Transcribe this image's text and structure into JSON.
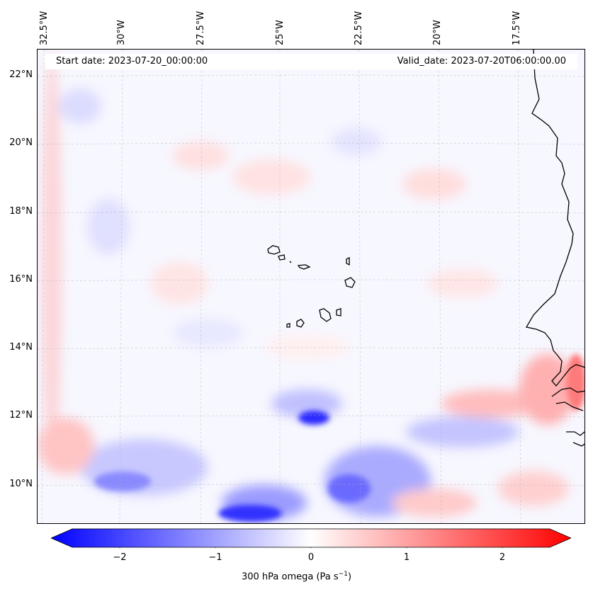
{
  "map": {
    "start_date": "Start date: 2023-07-20_00:00:00",
    "valid_date": "Valid_date: 2023-07-20T06:00:00.00",
    "lon_labels": [
      "32.5°W",
      "30°W",
      "27.5°W",
      "25°W",
      "22.5°W",
      "20°W",
      "17.5°W"
    ],
    "lat_labels": [
      "22°N",
      "20°N",
      "18°N",
      "16°N",
      "14°N",
      "12°N",
      "10°N"
    ],
    "colors": {
      "negative": "#0000ff",
      "zero": "#ffffff",
      "positive": "#ff0000",
      "coast": "#000000"
    }
  },
  "colorbar": {
    "ticks": [
      "−2",
      "−1",
      "0",
      "1",
      "2"
    ],
    "tick_values": [
      -2,
      -1,
      0,
      1,
      2
    ],
    "range": [
      -2.5,
      2.5
    ],
    "title_main": "300 hPa omega (Pa s",
    "title_sup": "−1",
    "title_end": ")"
  }
}
